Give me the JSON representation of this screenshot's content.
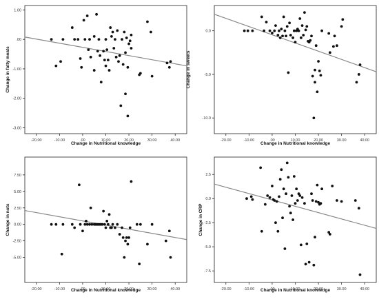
{
  "chart_data": [
    {
      "type": "scatter",
      "xlabel": "Change in Nutritional knowledge",
      "ylabel": "Change in fatty meats",
      "xlim": [
        -25,
        45
      ],
      "ylim": [
        -3.2,
        1.15
      ],
      "xticks": [
        "-20.00",
        "-10.00",
        ".00",
        "10.00",
        "20.00",
        "30.00",
        "40.00"
      ],
      "xtick_values": [
        -20,
        -10,
        0,
        10,
        20,
        30,
        40
      ],
      "yticks": [
        "1.00",
        ".00",
        "-1.00",
        "-2.00",
        "-3.00"
      ],
      "ytick_values": [
        1,
        0,
        -1,
        -2,
        -3
      ],
      "fit_line": [
        [
          -25,
          0.08
        ],
        [
          45,
          -0.9
        ]
      ],
      "points": [
        [
          -13.5,
          0.0
        ],
        [
          -11.5,
          -0.9
        ],
        [
          -8.5,
          0.0
        ],
        [
          -9.5,
          -0.75
        ],
        [
          -4.5,
          0.4
        ],
        [
          -3.5,
          0.0
        ],
        [
          -2,
          0.0
        ],
        [
          -1,
          -0.65
        ],
        [
          -0.5,
          -0.95
        ],
        [
          0.5,
          0.65
        ],
        [
          1,
          0.0
        ],
        [
          2,
          0.8
        ],
        [
          2.5,
          -0.35
        ],
        [
          3,
          0.0
        ],
        [
          3.5,
          -0.6
        ],
        [
          5,
          0.1
        ],
        [
          5,
          -1.05
        ],
        [
          6,
          0.85
        ],
        [
          6.5,
          -0.4
        ],
        [
          7,
          0.0
        ],
        [
          7.5,
          -0.55
        ],
        [
          8,
          -1.45
        ],
        [
          9,
          -0.4
        ],
        [
          9.5,
          -0.7
        ],
        [
          10,
          0.0
        ],
        [
          10,
          -0.9
        ],
        [
          10.5,
          -0.35
        ],
        [
          11,
          -0.7
        ],
        [
          11.5,
          -1.05
        ],
        [
          12,
          0.4
        ],
        [
          12.5,
          0.1
        ],
        [
          13,
          0.25
        ],
        [
          13.5,
          -0.3
        ],
        [
          14,
          0.0
        ],
        [
          14.5,
          -0.6
        ],
        [
          15,
          0.3
        ],
        [
          15.5,
          -0.75
        ],
        [
          16,
          -0.55
        ],
        [
          16.5,
          -2.25
        ],
        [
          17,
          0.0
        ],
        [
          17.5,
          -0.85
        ],
        [
          18,
          0.25
        ],
        [
          18.5,
          -0.45
        ],
        [
          18.5,
          -1.85
        ],
        [
          19,
          0.05
        ],
        [
          19.5,
          -0.95
        ],
        [
          19.5,
          -2.6
        ],
        [
          20,
          -0.15
        ],
        [
          20.5,
          -0.05
        ],
        [
          21,
          -0.3
        ],
        [
          21,
          0.15
        ],
        [
          24.5,
          -1.2
        ],
        [
          25,
          -1.15
        ],
        [
          28,
          0.6
        ],
        [
          29.5,
          0.25
        ],
        [
          30,
          -1.25
        ],
        [
          36.5,
          -0.8
        ],
        [
          37.5,
          -0.95
        ],
        [
          38,
          -0.75
        ]
      ]
    },
    {
      "type": "scatter",
      "xlabel": "Change in Nutritional knowledge",
      "ylabel": "Change in sweets",
      "xlim": [
        -25,
        45
      ],
      "ylim": [
        -11.8,
        2.9
      ],
      "xticks": [
        "-20.00",
        "-10.00",
        ".00",
        "10.00",
        "20.00",
        "30.00",
        "40.00"
      ],
      "xtick_values": [
        -20,
        -10,
        0,
        10,
        20,
        30,
        40
      ],
      "yticks": [
        "0.0",
        "-5.0",
        "-10.0"
      ],
      "ytick_values": [
        0,
        -5,
        -10
      ],
      "fit_line": [
        [
          -25,
          1.9
        ],
        [
          45,
          -4.7
        ]
      ],
      "points": [
        [
          -12,
          0.0
        ],
        [
          -10.5,
          0.0
        ],
        [
          -8.5,
          0.0
        ],
        [
          -4.5,
          1.6
        ],
        [
          -3.5,
          0.0
        ],
        [
          -2.5,
          1.0
        ],
        [
          -1,
          0.0
        ],
        [
          0,
          -0.25
        ],
        [
          1,
          0.0
        ],
        [
          1.5,
          0.6
        ],
        [
          2.5,
          -0.5
        ],
        [
          3,
          0.0
        ],
        [
          3.5,
          -0.8
        ],
        [
          4,
          0.2
        ],
        [
          4.5,
          -0.6
        ],
        [
          5,
          1.6
        ],
        [
          5.5,
          0.0
        ],
        [
          6,
          -0.6
        ],
        [
          6.5,
          0.5
        ],
        [
          7,
          -4.8
        ],
        [
          7.5,
          0.9
        ],
        [
          8,
          -0.5
        ],
        [
          9,
          -0.8
        ],
        [
          9.5,
          0.0
        ],
        [
          10,
          -1.3
        ],
        [
          10.5,
          0.0
        ],
        [
          11,
          0.2
        ],
        [
          11.5,
          0.0
        ],
        [
          12,
          1.4
        ],
        [
          12.5,
          -0.8
        ],
        [
          13,
          0.6
        ],
        [
          13.5,
          -0.5
        ],
        [
          14,
          2.1
        ],
        [
          14.5,
          0.1
        ],
        [
          15,
          0.5
        ],
        [
          15.5,
          -1.2
        ],
        [
          16,
          -1.3
        ],
        [
          16.5,
          -1.1
        ],
        [
          17,
          -0.6
        ],
        [
          17.5,
          -5.2
        ],
        [
          18,
          -10.0
        ],
        [
          18.5,
          -5.9
        ],
        [
          18.5,
          -4.5
        ],
        [
          19,
          -1.7
        ],
        [
          19.5,
          -7.0
        ],
        [
          20,
          -3.5
        ],
        [
          20.5,
          -4.6
        ],
        [
          21,
          -5.1
        ],
        [
          21.5,
          0.0
        ],
        [
          24.5,
          -0.3
        ],
        [
          25,
          -2.5
        ],
        [
          26.5,
          -1.8
        ],
        [
          27,
          -0.6
        ],
        [
          28,
          -1.7
        ],
        [
          30,
          0.5
        ],
        [
          30.5,
          1.3
        ],
        [
          36.5,
          -5.9
        ],
        [
          37.5,
          -5.0
        ],
        [
          38,
          -3.9
        ]
      ]
    },
    {
      "type": "scatter",
      "xlabel": "Change in Nutritional knowledge",
      "ylabel": "Change in nuts",
      "xlim": [
        -25,
        45
      ],
      "ylim": [
        -8.8,
        10.2
      ],
      "xticks": [
        "-20.00",
        "-10.00",
        ".00",
        "10.00",
        "20.00",
        "30.00",
        "40.00"
      ],
      "xtick_values": [
        -20,
        -10,
        0,
        10,
        20,
        30,
        40
      ],
      "yticks": [
        "7.50",
        "5.00",
        "2.50",
        "0.00",
        "-2.50",
        "-5.00"
      ],
      "ytick_values": [
        7.5,
        5,
        2.5,
        0,
        -2.5,
        -5
      ],
      "fit_line": [
        [
          -25,
          2.1
        ],
        [
          45,
          -2.3
        ]
      ],
      "points": [
        [
          -13.5,
          0.0
        ],
        [
          -11.5,
          0.0
        ],
        [
          -9,
          -4.5
        ],
        [
          -8.5,
          0.0
        ],
        [
          -4.5,
          0.0
        ],
        [
          -3.5,
          -0.5
        ],
        [
          -1.5,
          6.0
        ],
        [
          -1,
          0.0
        ],
        [
          0,
          -1.0
        ],
        [
          1,
          0.0
        ],
        [
          1.5,
          0.5
        ],
        [
          2,
          0.0
        ],
        [
          3,
          0.0
        ],
        [
          3.5,
          2.5
        ],
        [
          4,
          0.0
        ],
        [
          5,
          0.0
        ],
        [
          5.5,
          0.0
        ],
        [
          6,
          0.0
        ],
        [
          6.5,
          0.0
        ],
        [
          7,
          0.0
        ],
        [
          7.5,
          0.0
        ],
        [
          8,
          0.0
        ],
        [
          8.5,
          0.0
        ],
        [
          9,
          2.0
        ],
        [
          9.5,
          0.0
        ],
        [
          10,
          -0.5
        ],
        [
          10.5,
          0.5
        ],
        [
          11,
          0.0
        ],
        [
          11.5,
          1.5
        ],
        [
          12,
          -0.5
        ],
        [
          12.5,
          -0.5
        ],
        [
          13,
          0.0
        ],
        [
          14,
          -0.5
        ],
        [
          15,
          0.0
        ],
        [
          16,
          -1.5
        ],
        [
          17,
          -0.5
        ],
        [
          17.5,
          -2.0
        ],
        [
          18,
          -5.0
        ],
        [
          18.5,
          -2.5
        ],
        [
          19,
          -2.0
        ],
        [
          19.5,
          -3.0
        ],
        [
          20,
          -2.0
        ],
        [
          20.5,
          -0.5
        ],
        [
          21,
          6.5
        ],
        [
          23.5,
          0.0
        ],
        [
          24.5,
          -6.0
        ],
        [
          25,
          0.0
        ],
        [
          28,
          -3.0
        ],
        [
          30,
          0.0
        ],
        [
          36,
          -2.5
        ],
        [
          37.5,
          -1.0
        ],
        [
          38,
          -5.0
        ]
      ]
    },
    {
      "type": "scatter",
      "xlabel": "Change in Nutritional knowledge",
      "ylabel": "Change in CRP",
      "xlim": [
        -25,
        45
      ],
      "ylim": [
        -8.7,
        4.3
      ],
      "xticks": [
        "-20.00",
        "-10.00",
        ".00",
        "10.00",
        "20.00",
        "30.00",
        "40.00"
      ],
      "xtick_values": [
        -20,
        -10,
        0,
        10,
        20,
        30,
        40
      ],
      "yticks": [
        "2.5",
        "0.0",
        "-2.5",
        "-5.0",
        "-7.5"
      ],
      "ytick_values": [
        2.5,
        0,
        -2.5,
        -5,
        -7.5
      ],
      "fit_line": [
        [
          -25,
          1.5
        ],
        [
          45,
          -3.1
        ]
      ],
      "points": [
        [
          -11,
          0.0
        ],
        [
          -9,
          0.2
        ],
        [
          -8.5,
          -0.1
        ],
        [
          -5,
          3.2
        ],
        [
          -4.5,
          -3.4
        ],
        [
          -3,
          -0.6
        ],
        [
          -2,
          0.3
        ],
        [
          -1,
          0.1
        ],
        [
          0,
          1.3
        ],
        [
          0.5,
          -0.1
        ],
        [
          1,
          -0.2
        ],
        [
          1.5,
          -2.5
        ],
        [
          2,
          -0.3
        ],
        [
          2.5,
          -3.4
        ],
        [
          3,
          0.2
        ],
        [
          3.5,
          2.0
        ],
        [
          4,
          3.0
        ],
        [
          4.5,
          -2.0
        ],
        [
          5,
          1.0
        ],
        [
          5.5,
          -5.2
        ],
        [
          6,
          0.5
        ],
        [
          6.5,
          3.7
        ],
        [
          7,
          2.2
        ],
        [
          7.5,
          -0.8
        ],
        [
          8,
          -1.5
        ],
        [
          8.5,
          0.3
        ],
        [
          9,
          -2.2
        ],
        [
          9.5,
          2.3
        ],
        [
          10,
          -0.5
        ],
        [
          10.5,
          1.0
        ],
        [
          11,
          -0.2
        ],
        [
          11.5,
          0.5
        ],
        [
          12,
          0.3
        ],
        [
          12.5,
          -4.8
        ],
        [
          13,
          0.1
        ],
        [
          14,
          -0.5
        ],
        [
          14.5,
          -6.8
        ],
        [
          15,
          -4.7
        ],
        [
          16,
          -6.6
        ],
        [
          17,
          0.5
        ],
        [
          17.5,
          -0.2
        ],
        [
          18,
          -6.9
        ],
        [
          18.5,
          -4.0
        ],
        [
          19,
          -0.3
        ],
        [
          19.5,
          1.4
        ],
        [
          20,
          -0.4
        ],
        [
          20.5,
          -0.6
        ],
        [
          21,
          -0.5
        ],
        [
          21.5,
          1.0
        ],
        [
          24.5,
          -3.5
        ],
        [
          25,
          -3.7
        ],
        [
          26,
          1.3
        ],
        [
          28,
          -0.2
        ],
        [
          30,
          -0.3
        ],
        [
          36,
          -0.2
        ],
        [
          37.5,
          -1.0
        ],
        [
          38,
          -7.9
        ]
      ]
    }
  ]
}
